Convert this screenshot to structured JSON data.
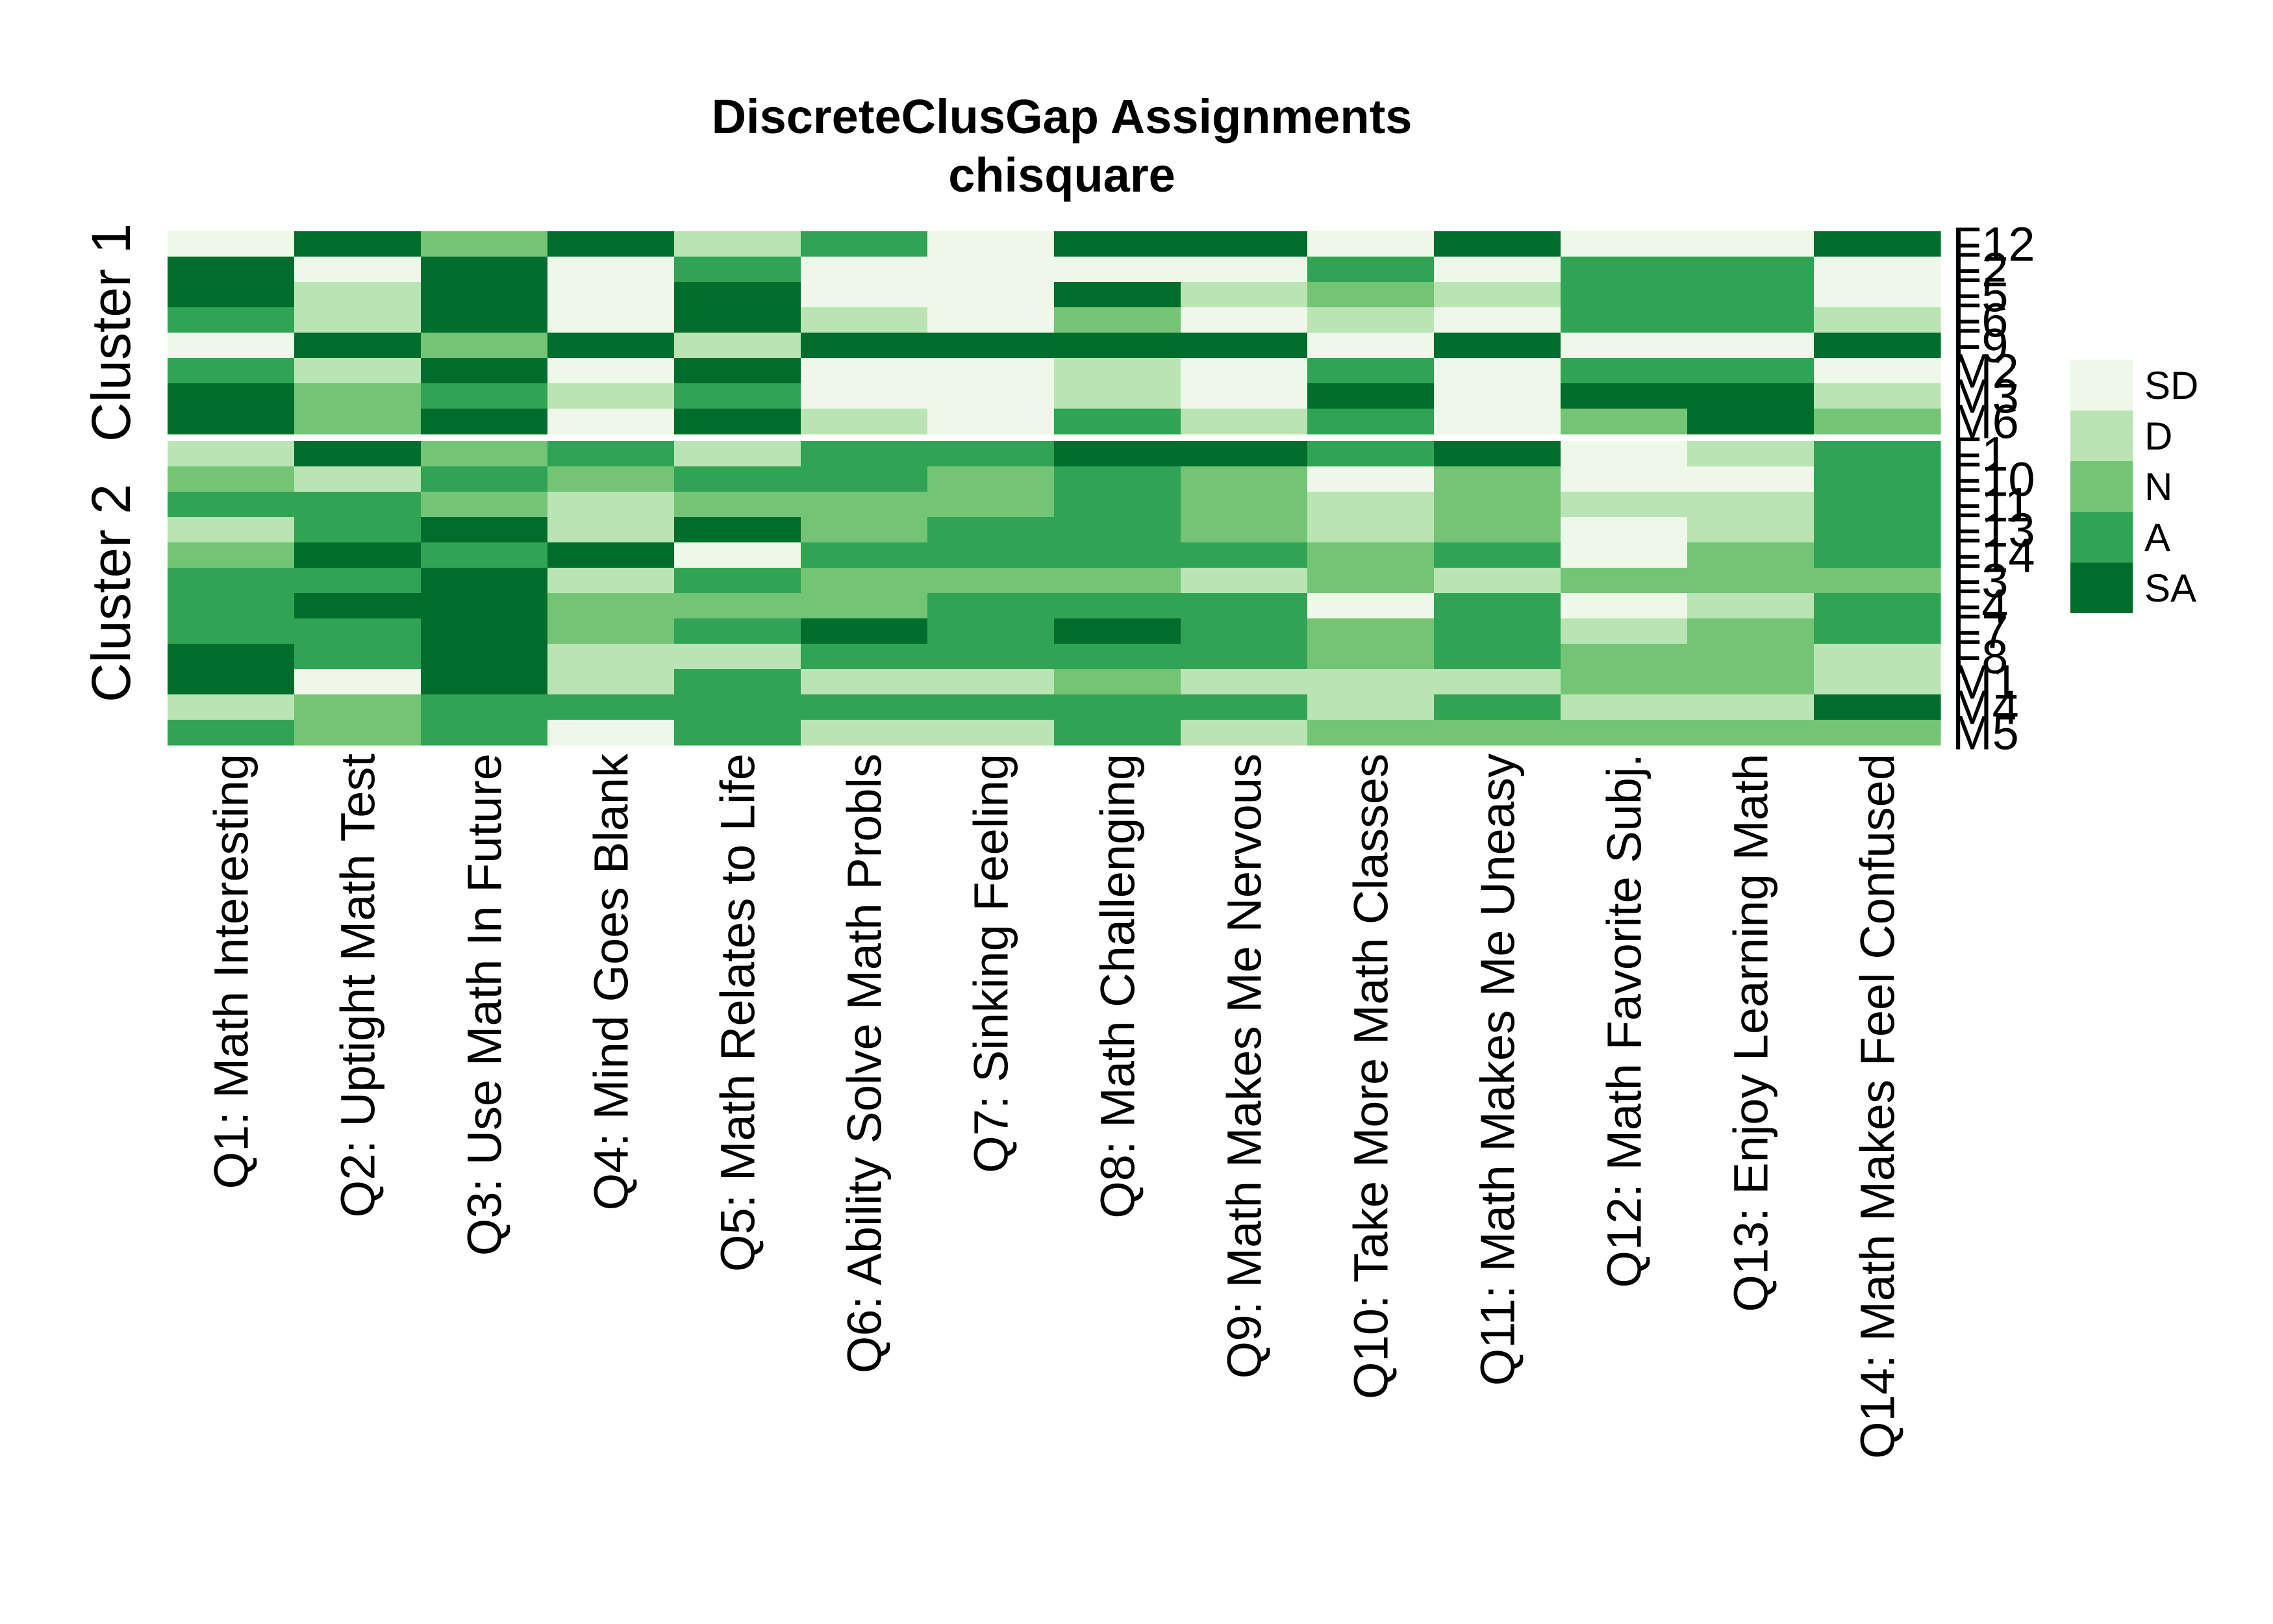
{
  "chart_data": {
    "type": "heatmap",
    "title": "DiscreteClusGap Assignments",
    "subtitle": "chisquare",
    "colors": {
      "SD": "#edf8e9",
      "D": "#bae4b3",
      "N": "#74c476",
      "A": "#31a354",
      "SA": "#006d2c"
    },
    "legend": [
      "SD",
      "D",
      "N",
      "A",
      "SA"
    ],
    "legend_position": "right",
    "columns": [
      "Q1: Math Interesting",
      "Q2: Uptight Math Test",
      "Q3: Use Math In Future",
      "Q4: Mind Goes Blank",
      "Q5: Math Relates to Life",
      "Q6: Ability Solve Math Probls",
      "Q7: Sinking Feeling",
      "Q8: Math Challenging",
      "Q9: Math Makes Me Nervous",
      "Q10: Take More Math Classes",
      "Q11: Math Makes Me Uneasy",
      "Q12: Math Favorite Subj.",
      "Q13: Enjoy Learning Math",
      "Q14: Math Makes Feel Confused"
    ],
    "clusters": [
      {
        "name": "Cluster 1",
        "rows": [
          {
            "label": "F12",
            "values": [
              1,
              5,
              3,
              5,
              2,
              4,
              1,
              5,
              5,
              1,
              5,
              1,
              1,
              5
            ]
          },
          {
            "label": "F2",
            "values": [
              5,
              1,
              5,
              1,
              4,
              1,
              1,
              1,
              1,
              4,
              1,
              4,
              4,
              1
            ]
          },
          {
            "label": "F5",
            "values": [
              5,
              2,
              5,
              1,
              5,
              1,
              1,
              5,
              2,
              3,
              2,
              4,
              4,
              1
            ]
          },
          {
            "label": "F6",
            "values": [
              4,
              2,
              5,
              1,
              5,
              2,
              1,
              3,
              1,
              2,
              1,
              4,
              4,
              2
            ]
          },
          {
            "label": "F9",
            "values": [
              1,
              5,
              3,
              5,
              2,
              5,
              5,
              5,
              5,
              1,
              5,
              1,
              1,
              5
            ]
          },
          {
            "label": "M2",
            "values": [
              4,
              2,
              5,
              1,
              5,
              1,
              1,
              2,
              1,
              4,
              1,
              4,
              4,
              1
            ]
          },
          {
            "label": "M3",
            "values": [
              5,
              3,
              4,
              2,
              4,
              1,
              1,
              2,
              1,
              5,
              1,
              5,
              5,
              2
            ]
          },
          {
            "label": "M6",
            "values": [
              5,
              3,
              5,
              1,
              5,
              2,
              1,
              4,
              2,
              4,
              1,
              3,
              5,
              3
            ]
          }
        ]
      },
      {
        "name": "Cluster 2",
        "rows": [
          {
            "label": "F1",
            "values": [
              2,
              5,
              3,
              4,
              2,
              4,
              4,
              5,
              5,
              4,
              5,
              1,
              2,
              4
            ]
          },
          {
            "label": "F10",
            "values": [
              3,
              2,
              4,
              3,
              4,
              4,
              3,
              4,
              3,
              1,
              3,
              1,
              1,
              4
            ]
          },
          {
            "label": "F11",
            "values": [
              4,
              4,
              3,
              2,
              3,
              3,
              3,
              4,
              3,
              2,
              3,
              2,
              2,
              4
            ]
          },
          {
            "label": "F13",
            "values": [
              2,
              4,
              5,
              2,
              5,
              3,
              4,
              4,
              3,
              2,
              3,
              1,
              2,
              4
            ]
          },
          {
            "label": "F14",
            "values": [
              3,
              5,
              4,
              5,
              1,
              4,
              4,
              4,
              4,
              3,
              4,
              1,
              3,
              4
            ]
          },
          {
            "label": "F3",
            "values": [
              4,
              4,
              5,
              2,
              4,
              3,
              3,
              3,
              2,
              3,
              2,
              3,
              3,
              3
            ]
          },
          {
            "label": "F4",
            "values": [
              4,
              5,
              5,
              3,
              3,
              3,
              4,
              4,
              4,
              1,
              4,
              1,
              2,
              4
            ]
          },
          {
            "label": "F7",
            "values": [
              4,
              4,
              5,
              3,
              4,
              5,
              4,
              5,
              4,
              3,
              4,
              2,
              3,
              4
            ]
          },
          {
            "label": "F8",
            "values": [
              5,
              4,
              5,
              2,
              2,
              4,
              4,
              4,
              4,
              3,
              4,
              3,
              3,
              2
            ]
          },
          {
            "label": "M1",
            "values": [
              5,
              1,
              5,
              2,
              4,
              2,
              2,
              3,
              2,
              2,
              2,
              3,
              3,
              2
            ]
          },
          {
            "label": "M4",
            "values": [
              2,
              3,
              4,
              4,
              4,
              4,
              4,
              4,
              4,
              2,
              4,
              2,
              2,
              5
            ]
          },
          {
            "label": "M5",
            "values": [
              4,
              3,
              4,
              1,
              4,
              2,
              2,
              4,
              2,
              3,
              3,
              3,
              3,
              3
            ]
          }
        ]
      }
    ]
  }
}
